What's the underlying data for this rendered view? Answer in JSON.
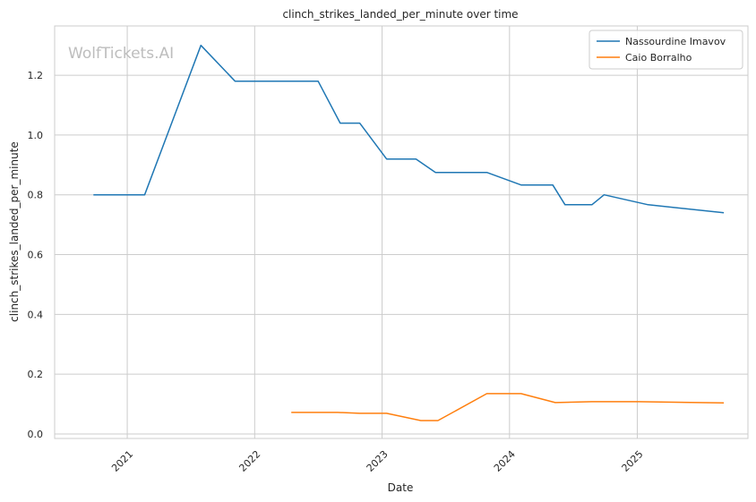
{
  "chart_data": {
    "type": "line",
    "title": "clinch_strikes_landed_per_minute over time",
    "xlabel": "Date",
    "ylabel": "clinch_strikes_landed_per_minute",
    "watermark": "WolfTickets.AI",
    "xlim": [
      "2020-06-07",
      "2025-11-14"
    ],
    "ylim": [
      -0.015,
      1.365
    ],
    "x_ticks": [
      "2021-01-01",
      "2022-01-01",
      "2023-01-01",
      "2024-01-01",
      "2025-01-01"
    ],
    "x_tick_labels": [
      "2021",
      "2022",
      "2023",
      "2024",
      "2025"
    ],
    "y_ticks": [
      0.0,
      0.2,
      0.4,
      0.6,
      0.8,
      1.0,
      1.2
    ],
    "y_tick_labels": [
      "0.0",
      "0.2",
      "0.4",
      "0.6",
      "0.8",
      "1.0",
      "1.2"
    ],
    "grid": true,
    "legend_position": "top-right",
    "series": [
      {
        "name": "Nassourdine Imavov",
        "color": "#1f77b4",
        "points": [
          {
            "x": "2020-09-26",
            "y": 0.8
          },
          {
            "x": "2021-02-20",
            "y": 0.8
          },
          {
            "x": "2021-07-31",
            "y": 1.3
          },
          {
            "x": "2021-11-06",
            "y": 1.18
          },
          {
            "x": "2022-07-02",
            "y": 1.18
          },
          {
            "x": "2022-09-03",
            "y": 1.04
          },
          {
            "x": "2022-10-29",
            "y": 1.04
          },
          {
            "x": "2023-01-14",
            "y": 0.92
          },
          {
            "x": "2023-04-08",
            "y": 0.92
          },
          {
            "x": "2023-06-03",
            "y": 0.875
          },
          {
            "x": "2023-10-28",
            "y": 0.875
          },
          {
            "x": "2024-02-03",
            "y": 0.833
          },
          {
            "x": "2024-05-04",
            "y": 0.833
          },
          {
            "x": "2024-06-08",
            "y": 0.767
          },
          {
            "x": "2024-08-24",
            "y": 0.767
          },
          {
            "x": "2024-09-28",
            "y": 0.8
          },
          {
            "x": "2025-02-01",
            "y": 0.767
          },
          {
            "x": "2025-09-06",
            "y": 0.74
          }
        ]
      },
      {
        "name": "Caio Borralho",
        "color": "#ff7f0e",
        "points": [
          {
            "x": "2022-04-16",
            "y": 0.072
          },
          {
            "x": "2022-08-27",
            "y": 0.072
          },
          {
            "x": "2022-10-29",
            "y": 0.069
          },
          {
            "x": "2023-01-14",
            "y": 0.069
          },
          {
            "x": "2023-04-22",
            "y": 0.045
          },
          {
            "x": "2023-06-10",
            "y": 0.045
          },
          {
            "x": "2023-10-28",
            "y": 0.135
          },
          {
            "x": "2024-02-03",
            "y": 0.135
          },
          {
            "x": "2024-05-11",
            "y": 0.105
          },
          {
            "x": "2024-08-24",
            "y": 0.108
          },
          {
            "x": "2025-01-04",
            "y": 0.108
          },
          {
            "x": "2025-09-06",
            "y": 0.104
          }
        ]
      }
    ]
  }
}
